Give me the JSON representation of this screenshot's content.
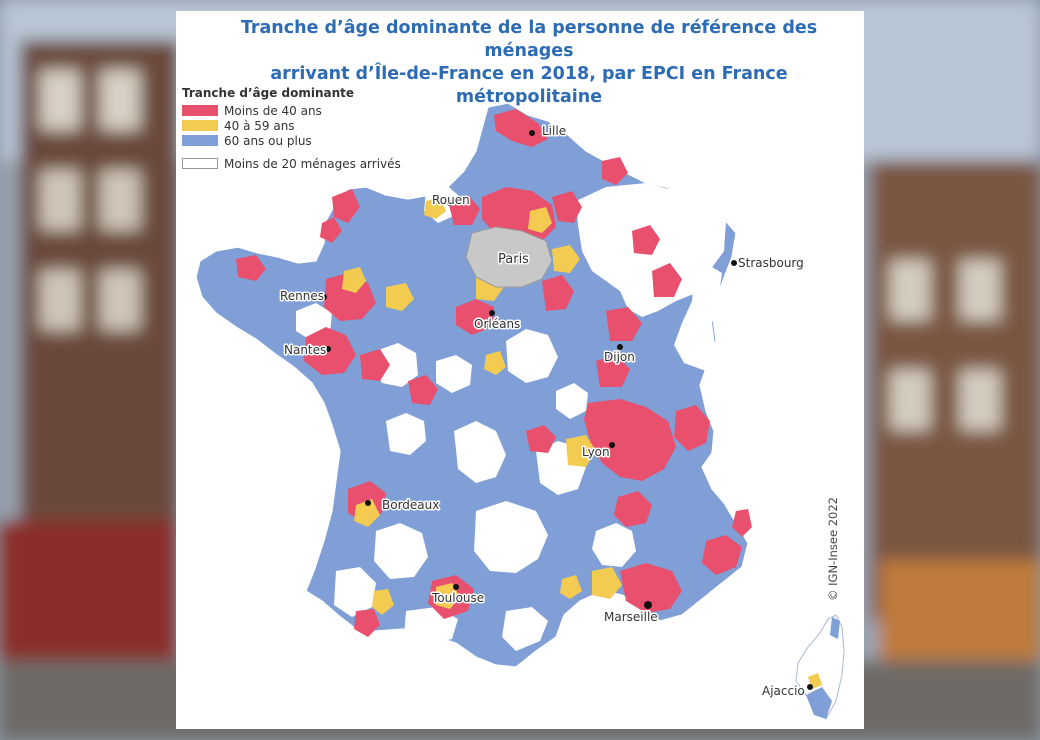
{
  "title_line1": "Tranche d’âge dominante de la personne de référence des ménages",
  "title_line2": "arrivant d’Île-de-France en 2018, par EPCI en France métropolitaine",
  "legend": {
    "title": "Tranche d’âge dominante",
    "items": [
      {
        "label": "Moins de 40 ans",
        "color": "#e8506e"
      },
      {
        "label": "40 à 59 ans",
        "color": "#f2cb50"
      },
      {
        "label": "60 ans ou plus",
        "color": "#7f9fd6"
      }
    ],
    "empty_item": {
      "label": "Moins de 20 ménages arrivés",
      "color": "#ffffff"
    }
  },
  "cities": {
    "lille": "Lille",
    "rouen": "Rouen",
    "paris": "Paris",
    "strasbourg": "Strasbourg",
    "rennes": "Rennes",
    "orleans": "Orléans",
    "nantes": "Nantes",
    "dijon": "Dijon",
    "lyon": "Lyon",
    "bordeaux": "Bordeaux",
    "toulouse": "Toulouse",
    "marseille": "Marseille",
    "ajaccio": "Ajaccio"
  },
  "copyright": "© IGN-Insee 2022",
  "colors": {
    "paris_region": "#c8c8c8",
    "border": "#ffffff",
    "title": "#2d6cb4"
  }
}
